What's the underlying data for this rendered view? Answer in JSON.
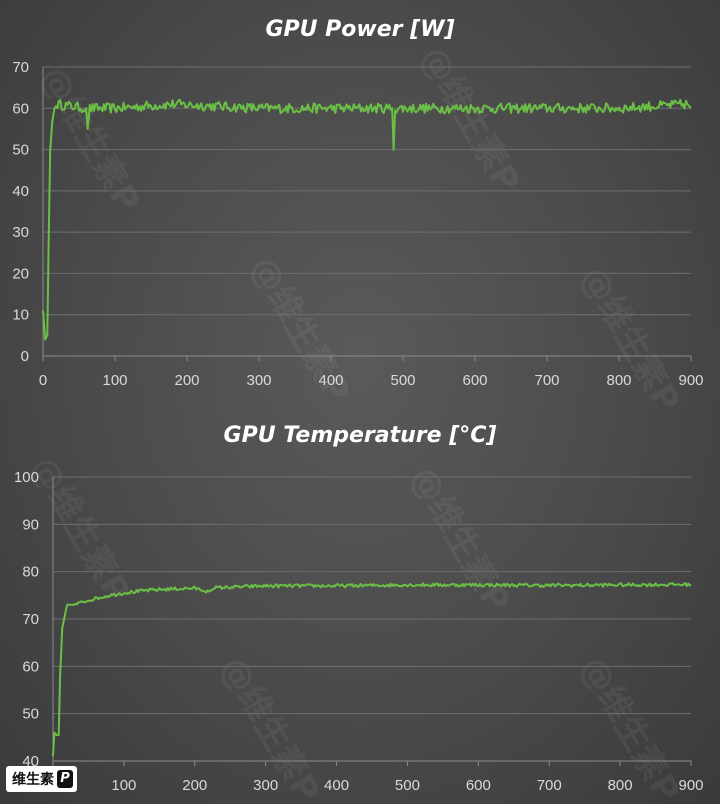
{
  "chart_data": [
    {
      "type": "line",
      "title": "GPU Power [W]",
      "xlabel": "",
      "ylabel": "",
      "xlim": [
        0,
        900
      ],
      "ylim": [
        0,
        70
      ],
      "xticks": [
        0,
        100,
        200,
        300,
        400,
        500,
        600,
        700,
        800,
        900
      ],
      "yticks": [
        0,
        10,
        20,
        30,
        40,
        50,
        60,
        70
      ],
      "grid": true,
      "series": [
        {
          "color": "#6abf45",
          "points": [
            [
              0,
              11
            ],
            [
              3,
              4
            ],
            [
              6,
              5
            ],
            [
              8,
              30
            ],
            [
              10,
              50
            ],
            [
              13,
              57
            ],
            [
              16,
              60
            ],
            [
              20,
              61
            ],
            [
              60,
              60
            ],
            [
              62,
              55
            ],
            [
              65,
              60
            ],
            [
              100,
              60
            ],
            [
              180,
              61
            ],
            [
              300,
              60
            ],
            [
              400,
              60
            ],
            [
              485,
              60
            ],
            [
              487,
              50
            ],
            [
              489,
              60
            ],
            [
              500,
              60
            ],
            [
              600,
              60
            ],
            [
              700,
              60
            ],
            [
              800,
              60
            ],
            [
              895,
              61
            ],
            [
              900,
              60
            ]
          ]
        }
      ]
    },
    {
      "type": "line",
      "title": "GPU Temperature [°C]",
      "xlabel": "",
      "ylabel": "",
      "xlim": [
        0,
        900
      ],
      "ylim": [
        40,
        100
      ],
      "xticks": [
        0,
        100,
        200,
        300,
        400,
        500,
        600,
        700,
        800,
        900
      ],
      "yticks": [
        40,
        50,
        60,
        70,
        80,
        90,
        100
      ],
      "grid": true,
      "series": [
        {
          "color": "#6abf45",
          "points": [
            [
              0,
              41
            ],
            [
              2,
              46
            ],
            [
              5,
              45.5
            ],
            [
              8,
              45.5
            ],
            [
              10,
              58
            ],
            [
              13,
              68
            ],
            [
              17,
              71
            ],
            [
              20,
              73
            ],
            [
              30,
              73
            ],
            [
              50,
              74
            ],
            [
              80,
              75
            ],
            [
              100,
              75.5
            ],
            [
              130,
              76
            ],
            [
              160,
              76.3
            ],
            [
              200,
              76.5
            ],
            [
              220,
              75.8
            ],
            [
              230,
              76.6
            ],
            [
              300,
              77
            ],
            [
              400,
              77
            ],
            [
              500,
              77.2
            ],
            [
              600,
              77.2
            ],
            [
              700,
              77.1
            ],
            [
              800,
              77.2
            ],
            [
              900,
              77.3
            ]
          ]
        }
      ]
    }
  ],
  "logo": {
    "text": "维生素",
    "badge": "P"
  },
  "watermark": "@维生素P"
}
